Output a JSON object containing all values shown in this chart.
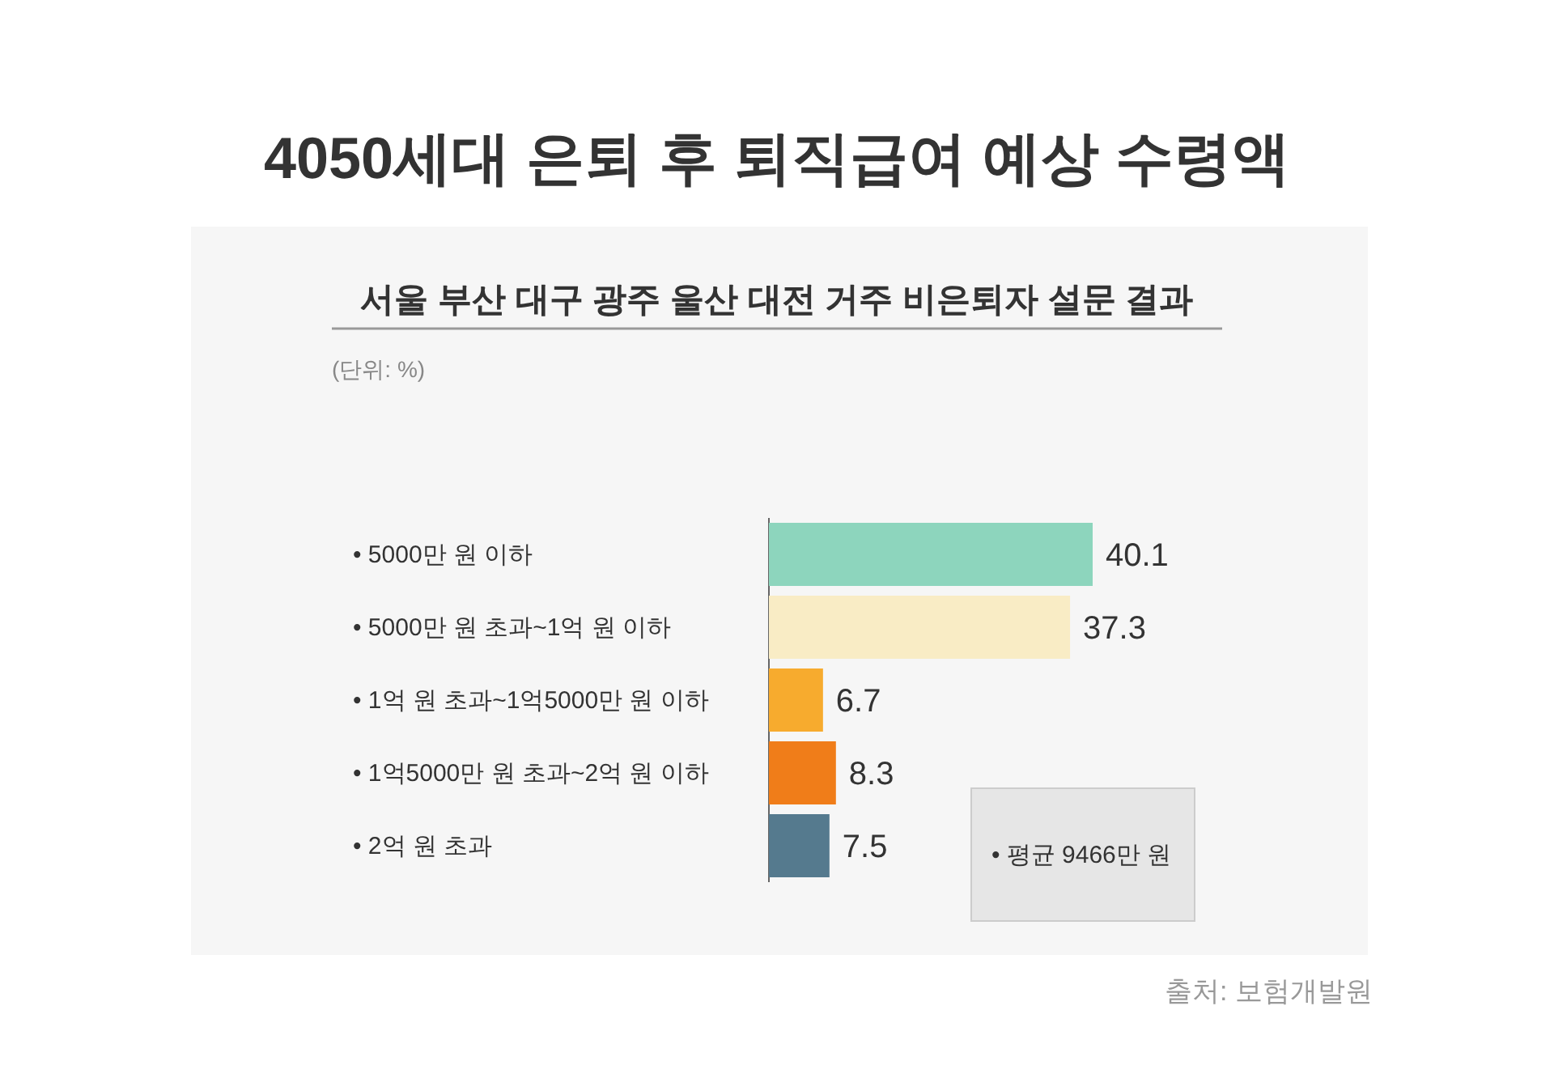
{
  "chart_data": {
    "type": "bar",
    "orientation": "horizontal",
    "title": "4050세대 은퇴 후 퇴직급여 예상 수령액",
    "subtitle": "서울 부산 대구 광주 울산 대전 거주 비은퇴자 설문 결과",
    "categories": [
      "• 5000만 원 이하",
      "• 5000만 원 초과~1억 원 이하",
      "• 1억 원 초과~1억5000만 원 이하",
      "• 1억5000만 원 초과~2억 원 이하",
      "• 2억 원 초과"
    ],
    "values": [
      40.1,
      37.3,
      6.7,
      8.3,
      7.5
    ],
    "colors": [
      "#8dd5bd",
      "#f9ecc5",
      "#f7ab2e",
      "#f07d19",
      "#557a8e"
    ],
    "data_labels": true,
    "annotations": [
      "(단위: %)",
      "• 평균 9466만 원",
      "출처: 보험개발원"
    ]
  }
}
